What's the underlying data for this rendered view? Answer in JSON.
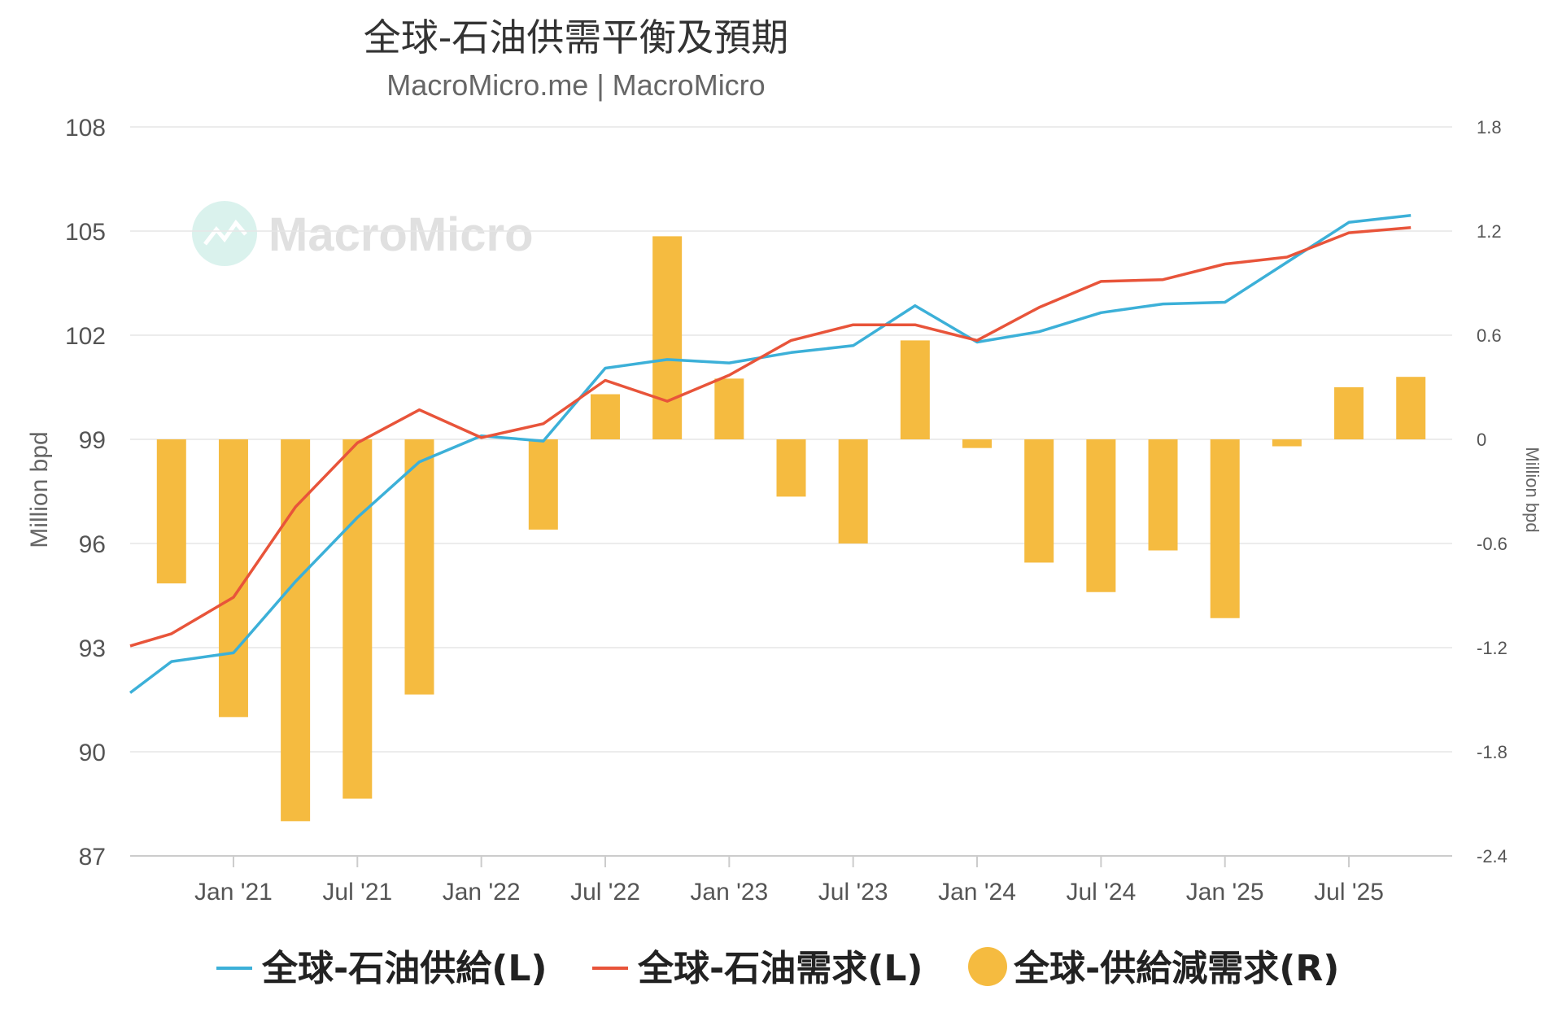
{
  "title": "全球-石油供需平衡及預期",
  "subtitle": "MacroMicro.me | MacroMicro",
  "watermark": "MacroMicro",
  "colors": {
    "supply": "#3cb0d8",
    "demand": "#e8543a",
    "balance": "#f5bb40",
    "grid": "#e6e6e6"
  },
  "chart_data": {
    "type": "bar+line",
    "x_tick_labels": [
      "Jan '21",
      "Jul '21",
      "Jan '22",
      "Jul '22",
      "Jan '23",
      "Jul '23",
      "Jan '24",
      "Jul '24",
      "Jan '25",
      "Jul '25"
    ],
    "x_tick_dates": [
      "2021-01",
      "2021-07",
      "2022-01",
      "2022-07",
      "2023-01",
      "2023-07",
      "2024-01",
      "2024-07",
      "2025-01",
      "2025-07"
    ],
    "xlim": [
      "2020-08",
      "2025-12"
    ],
    "left_axis": {
      "label": "Million bpd",
      "ticks": [
        "108",
        "105",
        "102",
        "99",
        "96",
        "93",
        "90",
        "87"
      ],
      "ylim": [
        87,
        108
      ]
    },
    "right_axis": {
      "label": "Million bpd",
      "ticks": [
        "1.8",
        "1.2",
        "0.6",
        "0",
        "-0.6",
        "-1.2",
        "-1.8",
        "-2.4"
      ],
      "ylim": [
        -2.4,
        1.8
      ]
    },
    "legend_position": "bottom",
    "grid": true,
    "series": [
      {
        "name": "全球-石油供給(L)",
        "type": "line",
        "axis": "left",
        "points": [
          {
            "x": "2020-08",
            "y": 91.7
          },
          {
            "x": "2020-10",
            "y": 92.6
          },
          {
            "x": "2021-01",
            "y": 92.85
          },
          {
            "x": "2021-04",
            "y": 94.9
          },
          {
            "x": "2021-07",
            "y": 96.75
          },
          {
            "x": "2021-10",
            "y": 98.35
          },
          {
            "x": "2022-01",
            "y": 99.1
          },
          {
            "x": "2022-04",
            "y": 98.95
          },
          {
            "x": "2022-07",
            "y": 101.05
          },
          {
            "x": "2022-10",
            "y": 101.3
          },
          {
            "x": "2023-01",
            "y": 101.2
          },
          {
            "x": "2023-04",
            "y": 101.5
          },
          {
            "x": "2023-07",
            "y": 101.7
          },
          {
            "x": "2023-10",
            "y": 102.85
          },
          {
            "x": "2024-01",
            "y": 101.8
          },
          {
            "x": "2024-04",
            "y": 102.1
          },
          {
            "x": "2024-07",
            "y": 102.65
          },
          {
            "x": "2024-10",
            "y": 102.9
          },
          {
            "x": "2025-01",
            "y": 102.95
          },
          {
            "x": "2025-04",
            "y": 104.1
          },
          {
            "x": "2025-07",
            "y": 105.25
          },
          {
            "x": "2025-10",
            "y": 105.45
          }
        ]
      },
      {
        "name": "全球-石油需求(L)",
        "type": "line",
        "axis": "left",
        "points": [
          {
            "x": "2020-08",
            "y": 93.05
          },
          {
            "x": "2020-10",
            "y": 93.4
          },
          {
            "x": "2021-01",
            "y": 94.45
          },
          {
            "x": "2021-04",
            "y": 97.05
          },
          {
            "x": "2021-07",
            "y": 98.9
          },
          {
            "x": "2021-10",
            "y": 99.85
          },
          {
            "x": "2022-01",
            "y": 99.05
          },
          {
            "x": "2022-04",
            "y": 99.45
          },
          {
            "x": "2022-07",
            "y": 100.7
          },
          {
            "x": "2022-10",
            "y": 100.1
          },
          {
            "x": "2023-01",
            "y": 100.85
          },
          {
            "x": "2023-04",
            "y": 101.85
          },
          {
            "x": "2023-07",
            "y": 102.3
          },
          {
            "x": "2023-10",
            "y": 102.3
          },
          {
            "x": "2024-01",
            "y": 101.85
          },
          {
            "x": "2024-04",
            "y": 102.8
          },
          {
            "x": "2024-07",
            "y": 103.55
          },
          {
            "x": "2024-10",
            "y": 103.6
          },
          {
            "x": "2025-01",
            "y": 104.05
          },
          {
            "x": "2025-04",
            "y": 104.25
          },
          {
            "x": "2025-07",
            "y": 104.95
          },
          {
            "x": "2025-10",
            "y": 105.1
          }
        ]
      },
      {
        "name": "全球-供給減需求(R)",
        "type": "bar",
        "axis": "right",
        "points": [
          {
            "x": "2020-10",
            "y": -0.83
          },
          {
            "x": "2021-01",
            "y": -1.6
          },
          {
            "x": "2021-04",
            "y": -2.2
          },
          {
            "x": "2021-07",
            "y": -2.07
          },
          {
            "x": "2021-10",
            "y": -1.47
          },
          {
            "x": "2022-04",
            "y": -0.52
          },
          {
            "x": "2022-07",
            "y": 0.26
          },
          {
            "x": "2022-10",
            "y": 1.17
          },
          {
            "x": "2023-01",
            "y": 0.35
          },
          {
            "x": "2023-04",
            "y": -0.33
          },
          {
            "x": "2023-07",
            "y": -0.6
          },
          {
            "x": "2023-10",
            "y": 0.57
          },
          {
            "x": "2024-01",
            "y": -0.05
          },
          {
            "x": "2024-04",
            "y": -0.71
          },
          {
            "x": "2024-07",
            "y": -0.88
          },
          {
            "x": "2024-10",
            "y": -0.64
          },
          {
            "x": "2025-01",
            "y": -1.03
          },
          {
            "x": "2025-04",
            "y": -0.04
          },
          {
            "x": "2025-07",
            "y": 0.3
          },
          {
            "x": "2025-10",
            "y": 0.36
          }
        ]
      }
    ]
  }
}
